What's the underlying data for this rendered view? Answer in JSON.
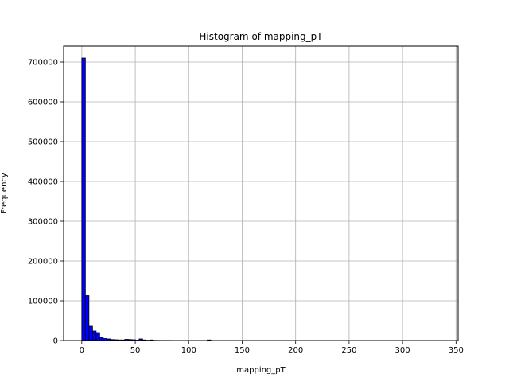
{
  "chart_data": {
    "type": "histogram",
    "title": "Histogram of mapping_pT",
    "xlabel": "mapping_pT",
    "ylabel": "Frequency",
    "xlim": [
      -17,
      352
    ],
    "ylim": [
      0,
      740000
    ],
    "xticks": [
      0,
      50,
      100,
      150,
      200,
      250,
      300,
      350
    ],
    "yticks": [
      0,
      100000,
      200000,
      300000,
      400000,
      500000,
      600000,
      700000
    ],
    "grid": true,
    "bar_color": "#0000ff",
    "edge_color": "#000000",
    "bin_start": 0,
    "bin_width": 3.35,
    "counts": [
      710000,
      113000,
      36000,
      24000,
      20000,
      8000,
      5000,
      4000,
      2500,
      2000,
      1500,
      1500,
      3000,
      2500,
      2000,
      1000,
      4000,
      1500,
      800,
      1500,
      500,
      400,
      300,
      300,
      300,
      200,
      200,
      200,
      200,
      200,
      200,
      200,
      200,
      200,
      200,
      1500,
      200,
      100,
      100,
      100,
      100,
      100,
      100,
      100,
      100,
      100,
      100,
      100,
      100,
      100,
      100,
      100,
      100,
      100,
      100,
      100,
      100,
      100,
      100,
      100,
      100,
      100,
      100,
      100,
      100,
      100,
      100,
      100,
      100,
      100,
      100,
      100,
      100,
      100,
      100,
      100,
      100,
      100,
      100,
      100,
      100,
      100,
      100,
      100,
      100,
      100,
      100,
      100,
      100,
      100,
      100,
      100,
      100,
      100,
      100,
      100,
      100,
      100,
      100,
      100
    ]
  }
}
